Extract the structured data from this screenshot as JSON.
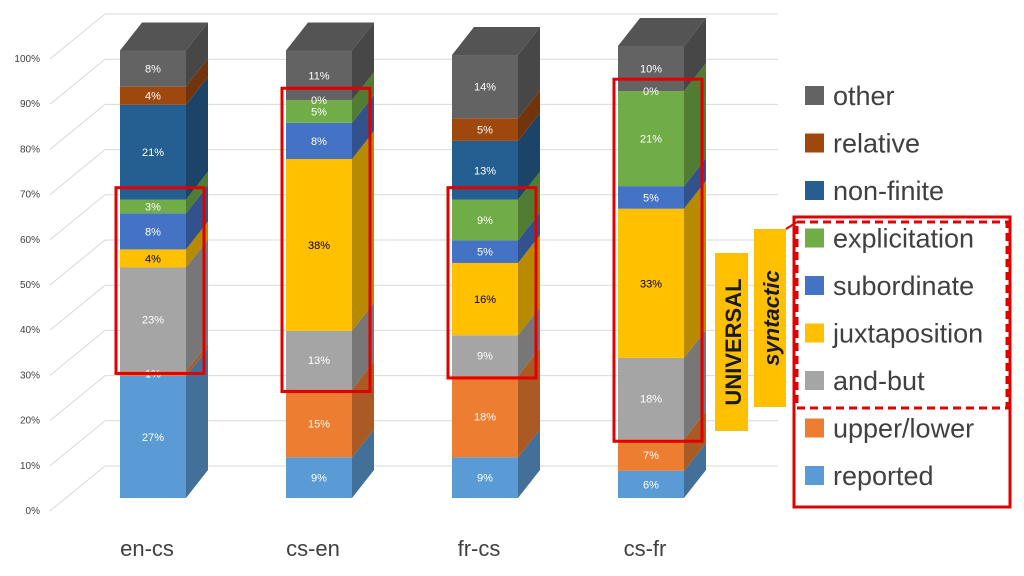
{
  "chart_data": {
    "type": "bar",
    "stacked": true,
    "three_d": true,
    "categories": [
      "en-cs",
      "cs-en",
      "fr-cs",
      "cs-fr"
    ],
    "yticks": [
      "0%",
      "10%",
      "20%",
      "30%",
      "40%",
      "50%",
      "60%",
      "70%",
      "80%",
      "90%",
      "100%"
    ],
    "ylim": [
      0,
      100
    ],
    "legend_position": "right",
    "series": [
      {
        "name": "reported",
        "color": "#5b9bd5",
        "values": [
          27,
          9,
          9,
          6
        ],
        "labels": [
          "27%",
          "9%",
          "9%",
          "6%"
        ]
      },
      {
        "name": "upper/lower",
        "color": "#ed7d31",
        "values": [
          1,
          15,
          18,
          7
        ],
        "labels": [
          "1%",
          "15%",
          "18%",
          "7%"
        ]
      },
      {
        "name": "and-but",
        "color": "#a5a5a5",
        "values": [
          23,
          13,
          9,
          18
        ],
        "labels": [
          "23%",
          "13%",
          "9%",
          "18%"
        ]
      },
      {
        "name": "juxtaposition",
        "color": "#ffc000",
        "values": [
          4,
          38,
          16,
          33
        ],
        "labels": [
          "4%",
          "38%",
          "16%",
          "33%"
        ]
      },
      {
        "name": "subordinate",
        "color": "#4472c4",
        "values": [
          8,
          8,
          5,
          5
        ],
        "labels": [
          "8%",
          "8%",
          "5%",
          "5%"
        ]
      },
      {
        "name": "explicitation",
        "color": "#70ad47",
        "values": [
          3,
          5,
          9,
          21
        ],
        "labels": [
          "3%",
          "5%",
          "9%",
          "21%"
        ]
      },
      {
        "name": "non-finite",
        "color": "#255e91",
        "values": [
          21,
          0,
          13,
          0
        ],
        "labels": [
          "21%",
          "",
          "13%",
          ""
        ]
      },
      {
        "name": "relative",
        "color": "#9e480e",
        "values": [
          4,
          0,
          5,
          0
        ],
        "labels": [
          "4%",
          "0%",
          "5%",
          "0%"
        ]
      },
      {
        "name": "other",
        "color": "#636363",
        "values": [
          8,
          11,
          14,
          10
        ],
        "labels": [
          "8%",
          "11%",
          "14%",
          "10%"
        ]
      }
    ],
    "highlights": [
      {
        "category": "en-cs",
        "from": "and-but",
        "to": "explicitation"
      },
      {
        "category": "cs-en",
        "from": "and-but",
        "to": "explicitation"
      },
      {
        "category": "fr-cs",
        "from": "and-but",
        "to": "explicitation"
      },
      {
        "category": "cs-fr",
        "from": "and-but",
        "to": "relative"
      }
    ],
    "annotations": {
      "universal": "UNIVERSAL",
      "syntactic": "syntactic"
    }
  }
}
